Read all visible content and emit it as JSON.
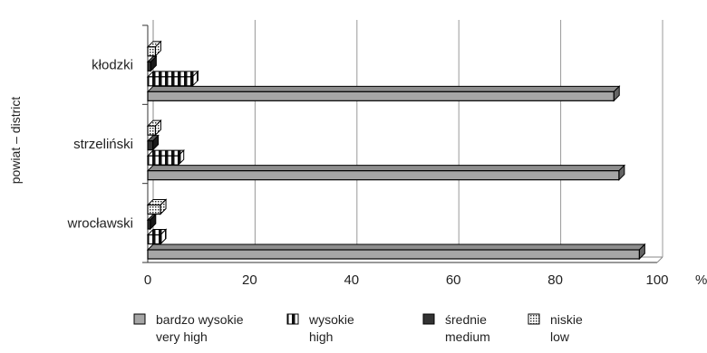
{
  "chart_data": {
    "type": "bar",
    "orientation": "horizontal",
    "style": "3d",
    "categories": [
      "kłodzki",
      "strzeliński",
      "wrocławski"
    ],
    "series": [
      {
        "name": "bardzo wysokie\nvery high",
        "values": [
          91.5,
          92.5,
          96.5
        ],
        "color": "#a6a6a6",
        "pattern": "solid"
      },
      {
        "name": "wysokie\nhigh",
        "values": [
          8.8,
          6,
          2.5
        ],
        "color": "#ffffff",
        "pattern": "vertical-stripes"
      },
      {
        "name": "średnie\nmedium",
        "values": [
          0.6,
          1,
          0.5
        ],
        "color": "#333333",
        "pattern": "solid-dark"
      },
      {
        "name": "niskie\nlow",
        "values": [
          1.5,
          1.5,
          2.5
        ],
        "color": "#ffffff",
        "pattern": "dots"
      }
    ],
    "xlim": [
      0,
      100
    ],
    "xticks": [
      0,
      20,
      40,
      60,
      80,
      100
    ],
    "x_unit": "%",
    "ylabel": "powiat – district",
    "grid": "vertical",
    "legend_position": "bottom"
  }
}
